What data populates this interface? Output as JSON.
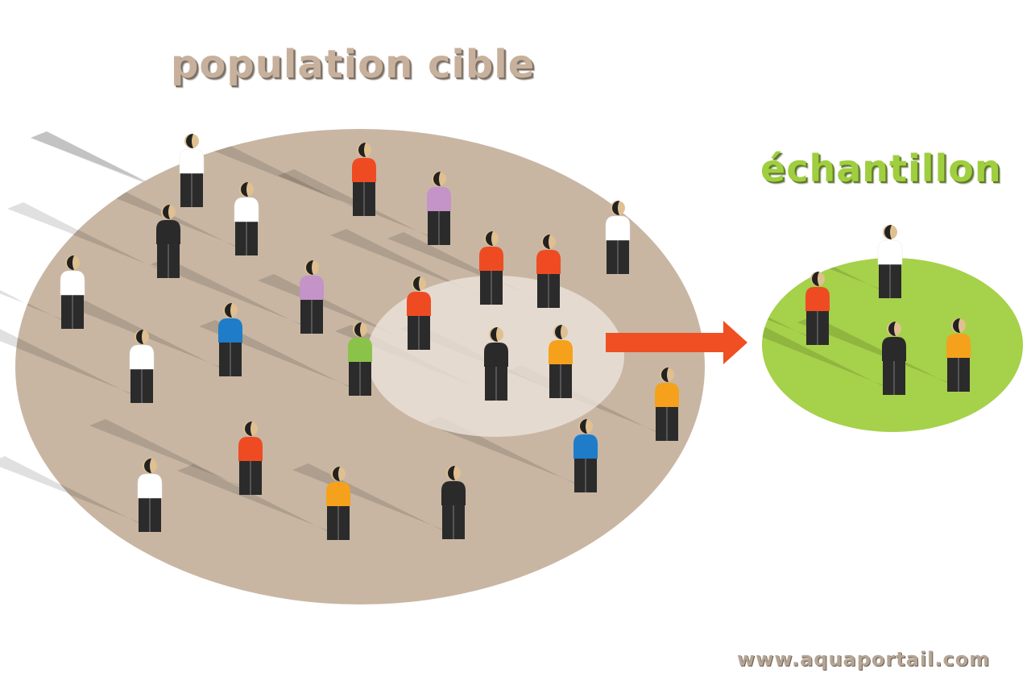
{
  "labels": {
    "population": "population cible",
    "sample": "échantillon",
    "watermark": "www.aquaportail.com"
  },
  "colors": {
    "population_area": "#c8b6a3",
    "sample_subset_area": "#ede4dc",
    "sample_area": "#a6d14a",
    "arrow": "#ef4f23",
    "skin": "#e0c090",
    "hair": "#222222",
    "legs": "#2b2b2b",
    "shirt_red": "#ef4b23",
    "shirt_white": "#ffffff",
    "shirt_black": "#2a2a2a",
    "shirt_purple": "#c493c8",
    "shirt_blue": "#1e7cc8",
    "shirt_green": "#8bc34a",
    "shirt_orange": "#f6a11c"
  },
  "people": {
    "population": [
      "white",
      "red",
      "purple",
      "white",
      "black",
      "white",
      "red",
      "red",
      "white",
      "purple",
      "red",
      "blue",
      "green",
      "black",
      "orange",
      "white",
      "orange",
      "red",
      "blue",
      "white",
      "orange",
      "black"
    ],
    "sample": [
      "white",
      "red",
      "black",
      "orange"
    ]
  }
}
